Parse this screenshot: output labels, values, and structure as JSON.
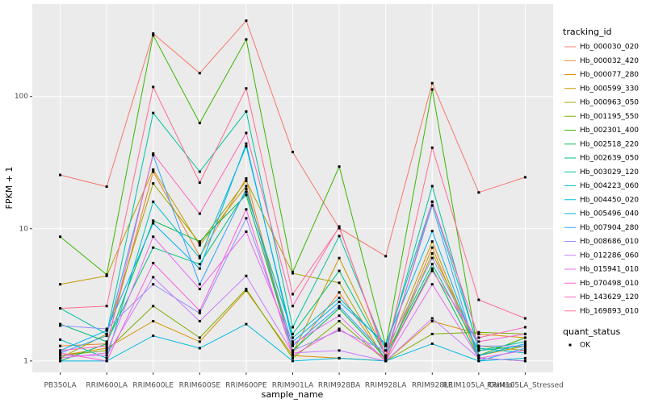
{
  "chart_data": {
    "type": "line",
    "x_label": "sample_name",
    "y_label": "FPKM + 1",
    "log_y": true,
    "grid": true,
    "categories": [
      "PB350LA",
      "RRIM600LA",
      "RRIM600LE",
      "RRIM600SE",
      "RRIM600PE",
      "RRIM901LA",
      "RRIM928BA",
      "RRIM928LA",
      "RRIM928LE",
      "RRIM105LA_Control",
      "RRIM105LA_Stressed"
    ],
    "ylim": [
      0.82,
      500
    ],
    "yticks": [
      1,
      10,
      100
    ],
    "legend_title": "tracking_id",
    "point_legend": {
      "title": "quant_status",
      "labels": [
        "OK"
      ],
      "color": "#000000"
    },
    "series": [
      {
        "name": "Hb_000030_020",
        "color": "#F8766D",
        "values": [
          25.5,
          20.8,
          299,
          150,
          374,
          38,
          10.1,
          6.2,
          126,
          18.8,
          24.5
        ]
      },
      {
        "name": "Hb_000032_420",
        "color": "#EA8331",
        "values": [
          1.3,
          1.35,
          27,
          6.2,
          24,
          1.15,
          3.3,
          1.0,
          7.2,
          1.05,
          1.0
        ]
      },
      {
        "name": "Hb_000077_280",
        "color": "#D89000",
        "values": [
          1.1,
          1.25,
          2.0,
          1.4,
          3.4,
          1.1,
          1.05,
          1.0,
          2.0,
          1.6,
          1.5
        ]
      },
      {
        "name": "Hb_000599_330",
        "color": "#C09B00",
        "values": [
          3.8,
          4.4,
          28,
          7.5,
          21,
          1.15,
          6.0,
          1.1,
          8.0,
          1.1,
          1.3
        ]
      },
      {
        "name": "Hb_000963_050",
        "color": "#A3A500",
        "values": [
          1.05,
          1.6,
          22,
          7.8,
          23,
          4.6,
          3.9,
          1.0,
          6.5,
          1.3,
          1.2
        ]
      },
      {
        "name": "Hb_001195_550",
        "color": "#7CAE00",
        "values": [
          1.1,
          1.2,
          2.6,
          1.5,
          3.5,
          1.05,
          2.0,
          1.0,
          1.6,
          1.65,
          1.6
        ]
      },
      {
        "name": "Hb_002301_400",
        "color": "#39B600",
        "values": [
          8.7,
          4.5,
          290,
          63,
          270,
          4.7,
          29.5,
          1.3,
          113,
          1.1,
          1.5
        ]
      },
      {
        "name": "Hb_002518_220",
        "color": "#00BB4E",
        "values": [
          1.0,
          1.35,
          11.5,
          8.0,
          18,
          1.2,
          2.5,
          1.05,
          5.0,
          1.05,
          1.0
        ]
      },
      {
        "name": "Hb_002639_050",
        "color": "#00BF7D",
        "values": [
          1.9,
          1.4,
          7.2,
          5.4,
          19,
          1.6,
          4.8,
          1.1,
          5.4,
          1.2,
          1.3
        ]
      },
      {
        "name": "Hb_003029_120",
        "color": "#00C1A3",
        "values": [
          2.5,
          1.6,
          75,
          27,
          77,
          1.8,
          8.8,
          1.2,
          21,
          1.2,
          1.4
        ]
      },
      {
        "name": "Hb_004223_060",
        "color": "#00BFC4",
        "values": [
          1.45,
          1.05,
          16,
          6.0,
          42,
          1.5,
          3.0,
          1.3,
          16,
          1.25,
          1.15
        ]
      },
      {
        "name": "Hb_004450_020",
        "color": "#00BAE0",
        "values": [
          1.0,
          1.0,
          1.55,
          1.25,
          1.9,
          1.0,
          1.05,
          1.0,
          1.35,
          1.0,
          1.05
        ]
      },
      {
        "name": "Hb_005496_040",
        "color": "#00B0F6",
        "values": [
          1.2,
          1.7,
          11,
          5.0,
          44,
          1.4,
          2.8,
          1.35,
          9.6,
          1.1,
          1.35
        ]
      },
      {
        "name": "Hb_007904_280",
        "color": "#35A2FF",
        "values": [
          1.15,
          1.55,
          36,
          3.8,
          20,
          1.3,
          2.6,
          1.1,
          15,
          1.0,
          1.25
        ]
      },
      {
        "name": "Hb_008686_010",
        "color": "#9590FF",
        "values": [
          1.85,
          1.75,
          3.8,
          2.3,
          12,
          1.2,
          1.7,
          1.2,
          6.0,
          1.3,
          1.3
        ]
      },
      {
        "name": "Hb_012286_060",
        "color": "#C77CFF",
        "values": [
          1.1,
          1.1,
          4.3,
          2.0,
          4.4,
          1.15,
          1.2,
          1.0,
          2.1,
          1.05,
          1.0
        ]
      },
      {
        "name": "Hb_015941_010",
        "color": "#E76BF3",
        "values": [
          1.05,
          1.15,
          8.7,
          3.5,
          9.5,
          1.35,
          2.2,
          1.0,
          3.8,
          1.05,
          1.2
        ]
      },
      {
        "name": "Hb_070498_010",
        "color": "#FA62DB",
        "values": [
          1.15,
          1.0,
          5.5,
          2.4,
          14,
          1.1,
          1.75,
          1.05,
          4.8,
          1.4,
          1.6
        ]
      },
      {
        "name": "Hb_143629_120",
        "color": "#FF62BC",
        "values": [
          1.2,
          1.3,
          37,
          13,
          53,
          2.6,
          10.4,
          1.05,
          16,
          1.5,
          1.8
        ]
      },
      {
        "name": "Hb_169893_010",
        "color": "#FF6C91",
        "values": [
          2.5,
          2.6,
          118,
          22.3,
          115,
          3.2,
          10.2,
          1.1,
          41,
          2.9,
          2.1
        ]
      }
    ]
  }
}
